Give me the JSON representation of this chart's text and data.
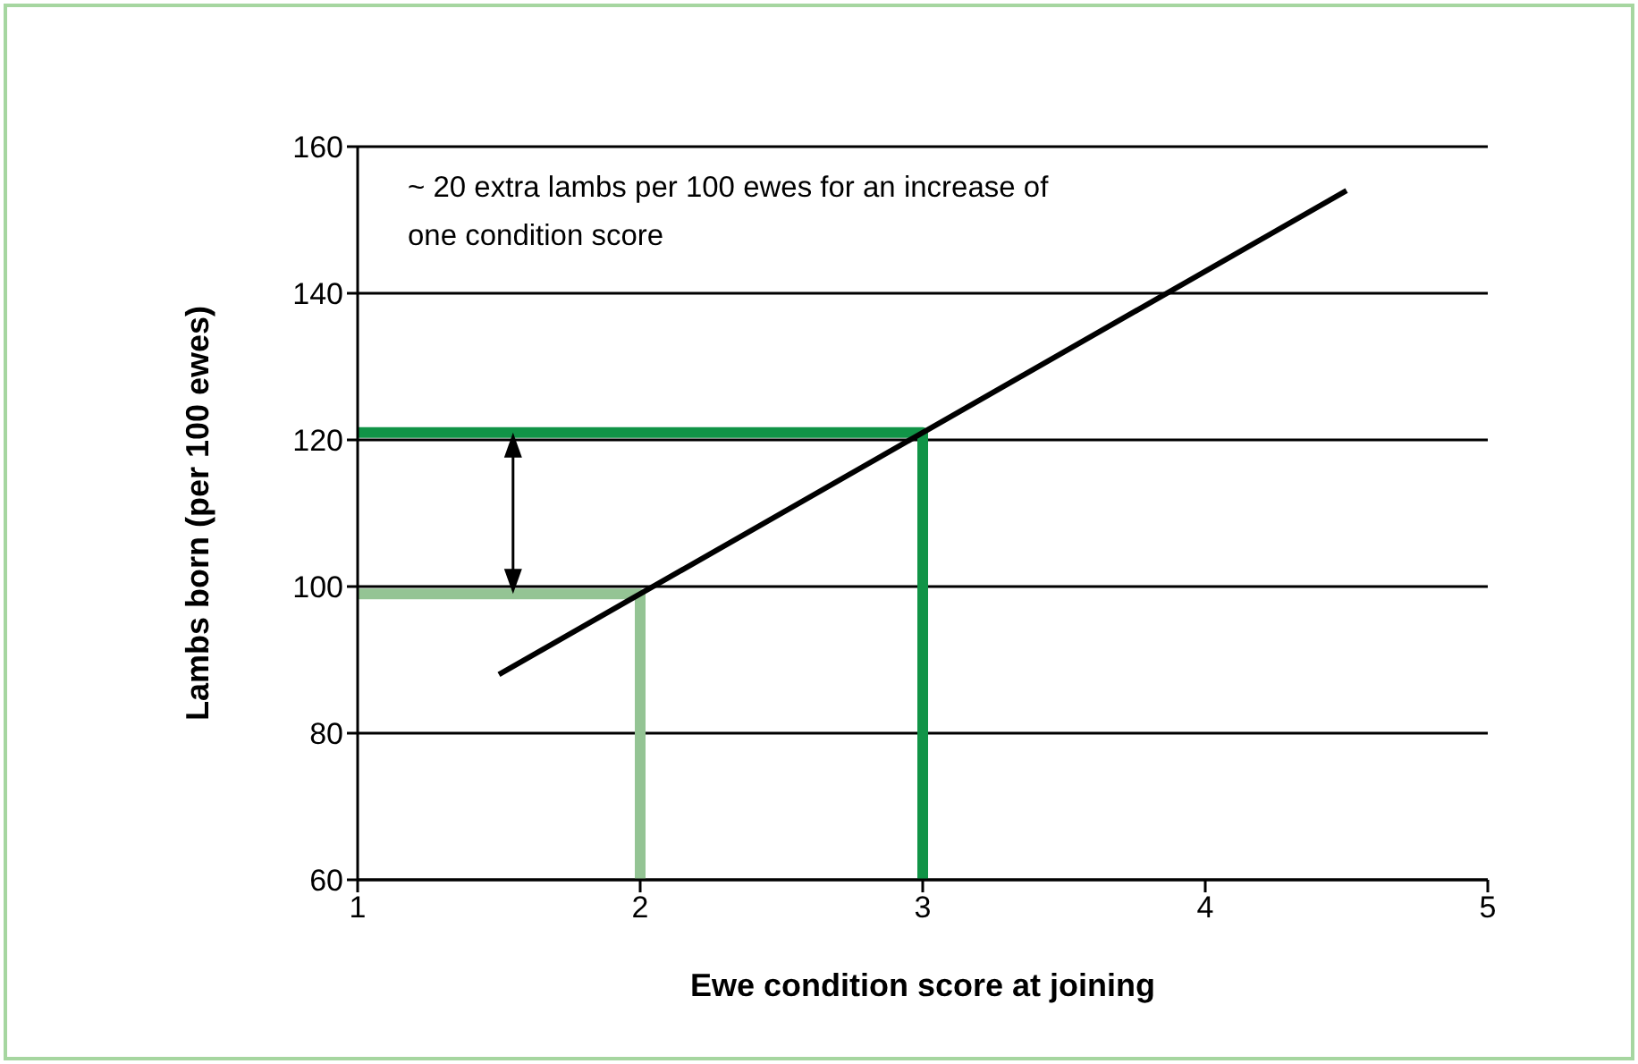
{
  "chart_data": {
    "type": "line",
    "xlabel": "Ewe condition score at joining",
    "ylabel": "Lambs born (per 100 ewes)",
    "annotations": [
      "~ 20 extra lambs per 100 ewes for an increase of one condition score"
    ],
    "series": [
      {
        "color": "#94c494",
        "x": [
          1,
          2,
          2
        ],
        "values": [
          99,
          99,
          60
        ]
      },
      {
        "color": "#119447",
        "x": [
          1,
          3,
          3
        ],
        "values": [
          121,
          121,
          60
        ]
      },
      {
        "color": "#000000",
        "x": [
          1.5,
          4.5
        ],
        "values": [
          88,
          154
        ]
      }
    ],
    "xlim": [
      1,
      5
    ],
    "xticks": [
      1,
      2,
      3,
      4,
      5
    ],
    "ylim": [
      60,
      160
    ],
    "yticks": [
      60,
      80,
      100,
      120,
      140,
      160
    ],
    "grid": "y"
  }
}
